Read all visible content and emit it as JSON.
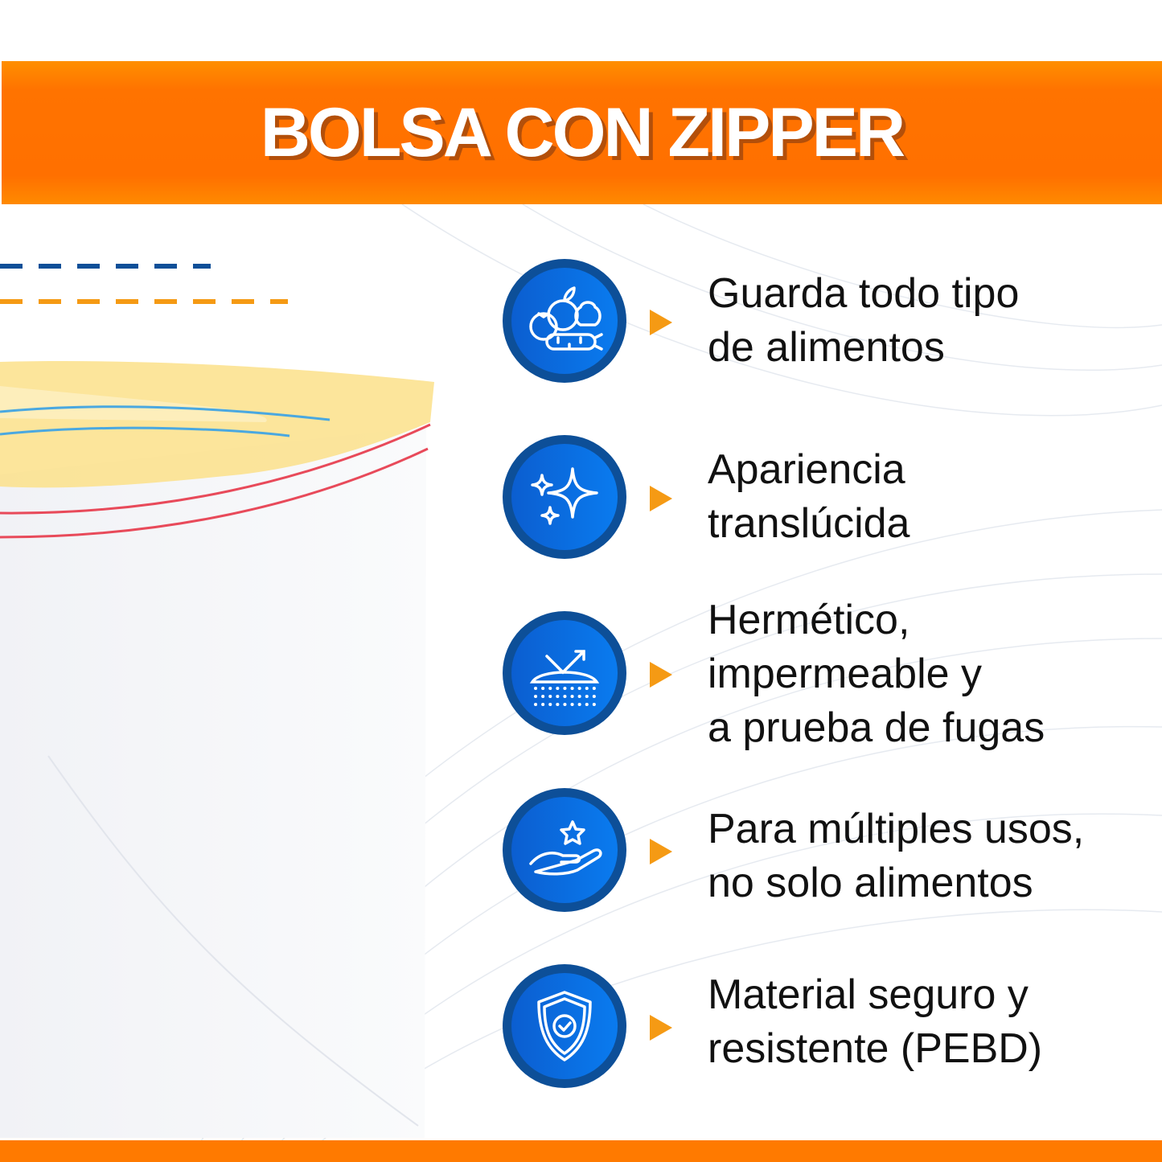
{
  "title": "BOLSA CON ZIPPER",
  "colors": {
    "banner": "#ff7300",
    "circle_outer": "#0d4f98",
    "circle_inner": "#0a6fe0",
    "arrow": "#f59a14",
    "dash_blue": "#0d4f98",
    "dash_orange": "#f59a14"
  },
  "features": [
    {
      "icon": "fruits-vegetables-icon",
      "lines": [
        "Guarda todo tipo",
        "de alimentos"
      ]
    },
    {
      "icon": "sparkles-icon",
      "lines": [
        "Apariencia",
        "translúcida"
      ]
    },
    {
      "icon": "waterproof-icon",
      "lines": [
        "Hermético,",
        "impermeable y",
        "a prueba de fugas"
      ]
    },
    {
      "icon": "hand-star-icon",
      "lines": [
        "Para múltiples usos,",
        "no solo alimentos"
      ]
    },
    {
      "icon": "shield-check-icon",
      "lines": [
        "Material seguro y",
        "resistente (PEBD)"
      ]
    }
  ]
}
